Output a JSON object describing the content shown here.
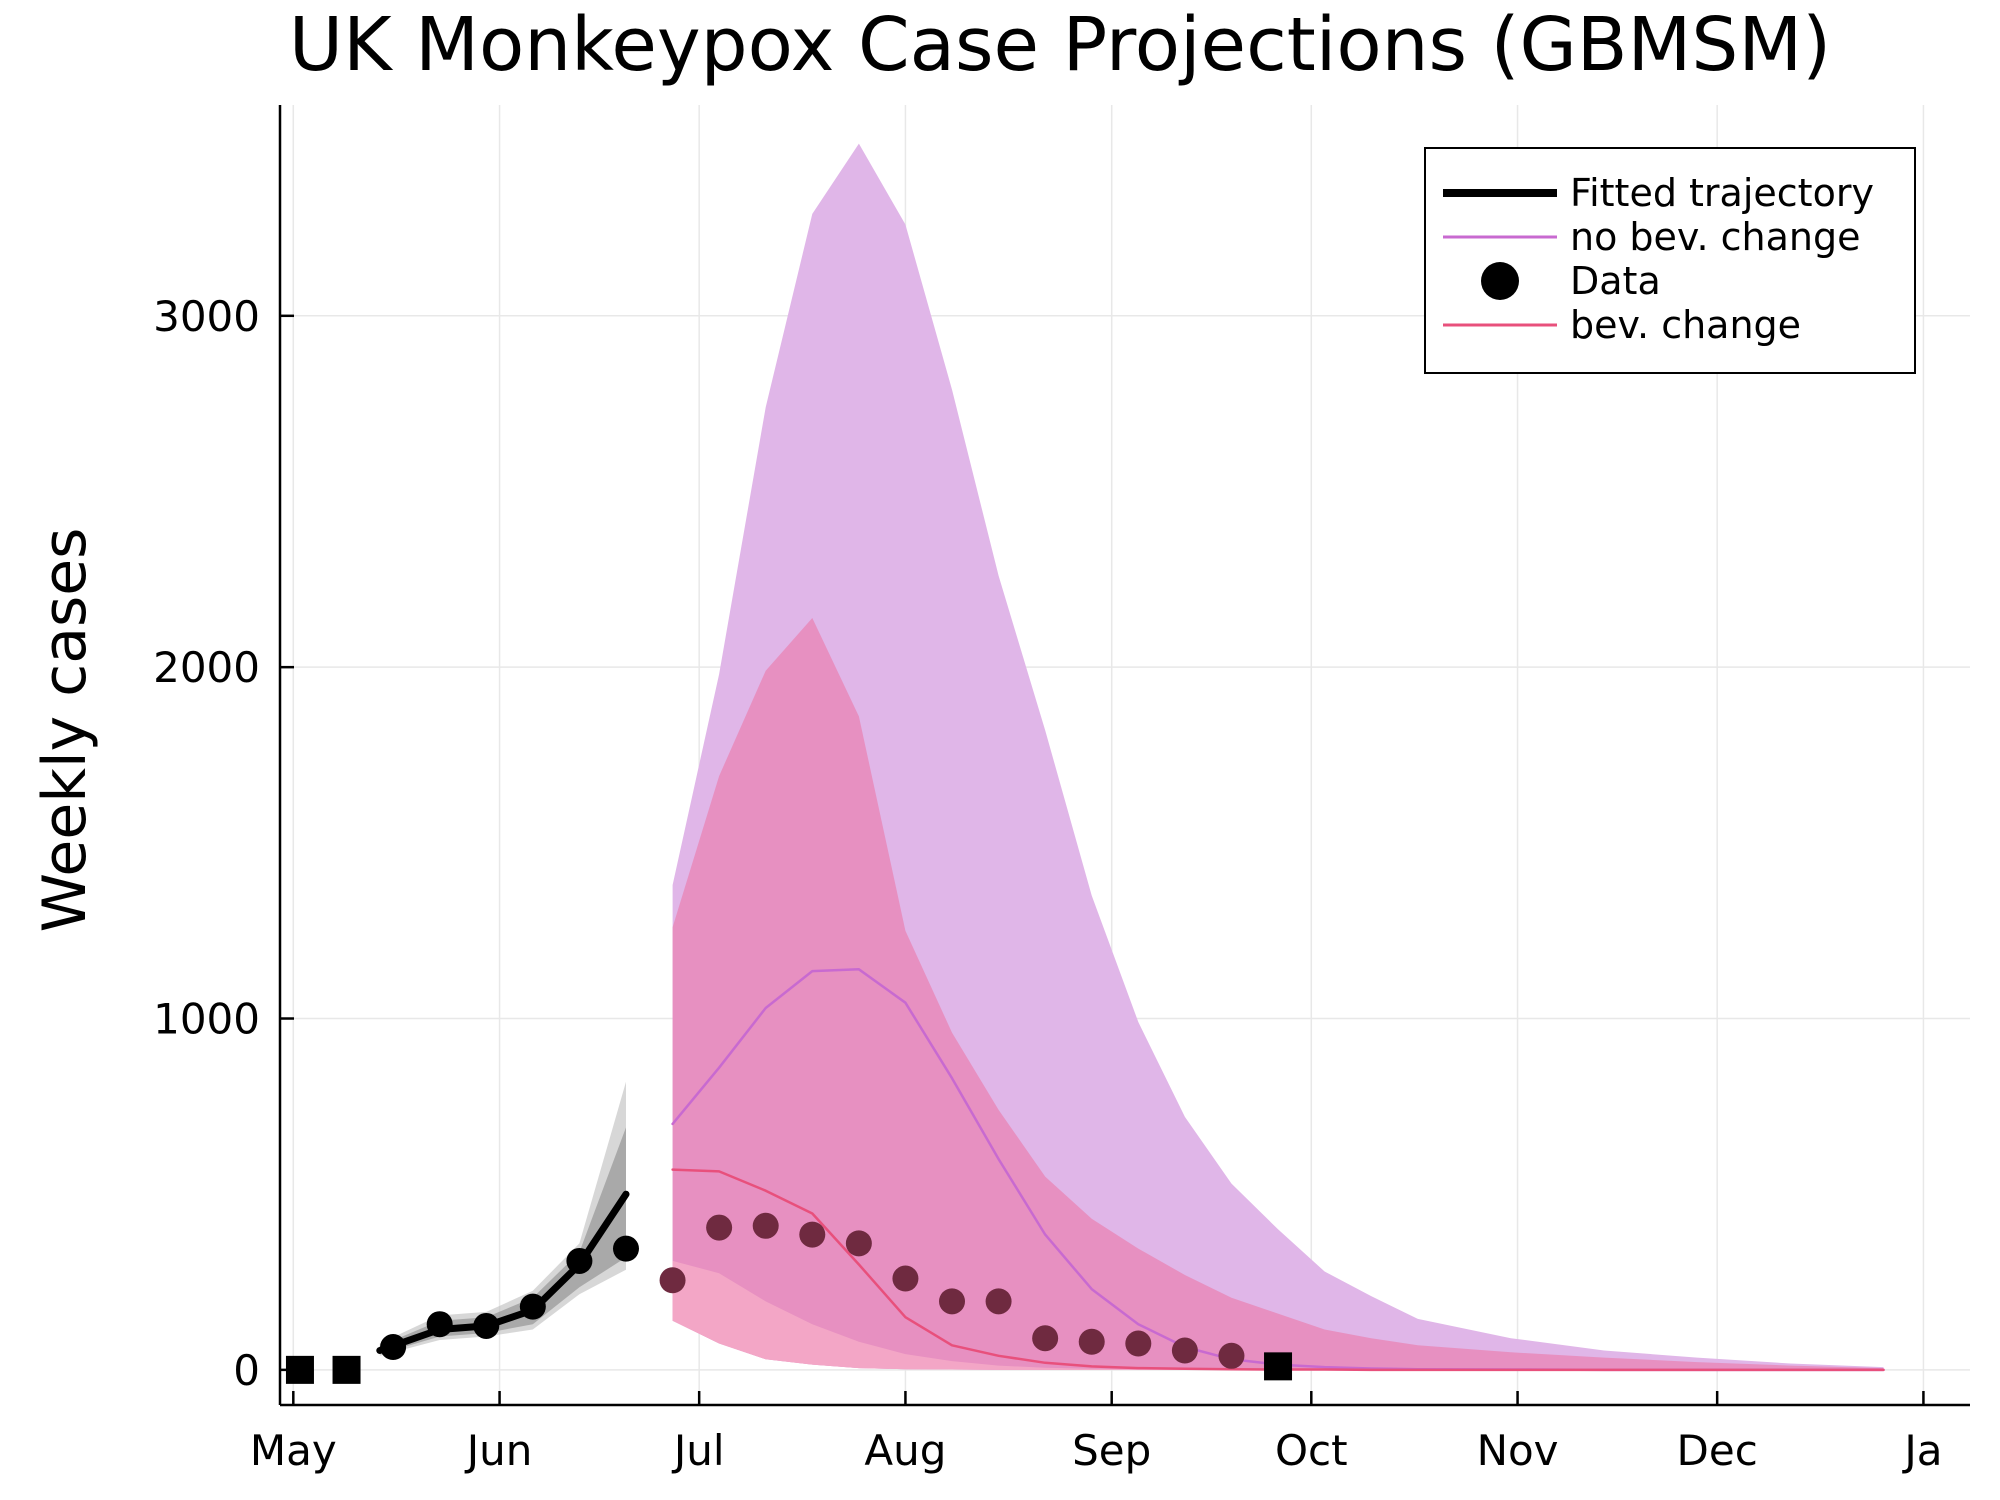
{
  "chart_data": {
    "type": "line",
    "title": "UK Monkeypox Case Projections (GBMSM)",
    "xlabel": "",
    "ylabel": "Weekly cases",
    "x_axis_unit": "date",
    "x_range": [
      "2022-04-29",
      "2023-01-08"
    ],
    "ylim": [
      -100,
      3600
    ],
    "yticks": [
      0,
      1000,
      2000,
      3000
    ],
    "yticklabels": [
      "0",
      "1000",
      "2000",
      "3000"
    ],
    "xticks": [
      {
        "label": "May",
        "date": "2022-05-01"
      },
      {
        "label": "Jun",
        "date": "2022-06-01"
      },
      {
        "label": "Jul",
        "date": "2022-07-01"
      },
      {
        "label": "Aug",
        "date": "2022-08-01"
      },
      {
        "label": "Sep",
        "date": "2022-09-01"
      },
      {
        "label": "Oct",
        "date": "2022-10-01"
      },
      {
        "label": "Nov",
        "date": "2022-11-01"
      },
      {
        "label": "Dec",
        "date": "2022-12-01"
      },
      {
        "label": "Ja",
        "date": "2023-01-01"
      }
    ],
    "grid": true,
    "legend_position": "top-right",
    "legend": [
      {
        "label": "Fitted trajectory",
        "style": "thick-line",
        "color": "#000000"
      },
      {
        "label": "no bev. change",
        "style": "line",
        "color": "#c86ad0"
      },
      {
        "label": "Data",
        "style": "marker",
        "color": "#000000"
      },
      {
        "label": "bev. change",
        "style": "line",
        "color": "#e8507c"
      }
    ],
    "colors": {
      "fitted": "#000000",
      "no_bev_change_line": "#c86ad0",
      "no_bev_change_band": "#e0b6e8",
      "bev_change_line": "#e8507c",
      "bev_change_band_outer": "#e88aba",
      "bev_change_band_inner": "#f4a8c6",
      "data_in_fit": "#000000",
      "data_after_fit": "#6f2a40",
      "grid": "#e8e8e8"
    },
    "excluded_data": [
      {
        "date": "2022-05-02",
        "value": 0
      },
      {
        "date": "2022-05-09",
        "value": 0
      },
      {
        "date": "2022-09-26",
        "value": 10
      }
    ],
    "fitted_data": [
      {
        "date": "2022-05-16",
        "value": 65
      },
      {
        "date": "2022-05-23",
        "value": 130
      },
      {
        "date": "2022-05-30",
        "value": 125
      },
      {
        "date": "2022-06-06",
        "value": 180
      },
      {
        "date": "2022-06-13",
        "value": 310
      },
      {
        "date": "2022-06-20",
        "value": 345
      }
    ],
    "post_fit_data": [
      {
        "date": "2022-06-27",
        "value": 255
      },
      {
        "date": "2022-07-04",
        "value": 405
      },
      {
        "date": "2022-07-11",
        "value": 410
      },
      {
        "date": "2022-07-18",
        "value": 385
      },
      {
        "date": "2022-07-25",
        "value": 360
      },
      {
        "date": "2022-08-01",
        "value": 260
      },
      {
        "date": "2022-08-08",
        "value": 195
      },
      {
        "date": "2022-08-15",
        "value": 195
      },
      {
        "date": "2022-08-22",
        "value": 90
      },
      {
        "date": "2022-08-29",
        "value": 80
      },
      {
        "date": "2022-09-05",
        "value": 75
      },
      {
        "date": "2022-09-12",
        "value": 55
      },
      {
        "date": "2022-09-19",
        "value": 40
      }
    ],
    "fitted_trajectory": {
      "dates": [
        "2022-05-14",
        "2022-05-23",
        "2022-05-30",
        "2022-06-06",
        "2022-06-13",
        "2022-06-20"
      ],
      "median": [
        55,
        115,
        125,
        170,
        300,
        500
      ],
      "band_outer_low": [
        40,
        85,
        95,
        115,
        215,
        285
      ],
      "band_outer_high": [
        75,
        155,
        165,
        225,
        360,
        820
      ],
      "band_inner_low": [
        45,
        95,
        105,
        130,
        235,
        320
      ],
      "band_inner_high": [
        68,
        140,
        150,
        205,
        335,
        690
      ]
    },
    "no_bev_change": {
      "dates": [
        "2022-06-27",
        "2022-07-04",
        "2022-07-11",
        "2022-07-18",
        "2022-07-25",
        "2022-08-01",
        "2022-08-08",
        "2022-08-15",
        "2022-08-22",
        "2022-08-29",
        "2022-09-05",
        "2022-09-12",
        "2022-09-19",
        "2022-09-26",
        "2022-10-03",
        "2022-10-10",
        "2022-10-17",
        "2022-10-31",
        "2022-11-14",
        "2022-11-28",
        "2022-12-12",
        "2022-12-26"
      ],
      "median": [
        700,
        860,
        1030,
        1135,
        1140,
        1045,
        830,
        600,
        385,
        230,
        130,
        65,
        30,
        15,
        8,
        4,
        2,
        1,
        0,
        0,
        0,
        0
      ],
      "upper": [
        1380,
        1980,
        2740,
        3290,
        3490,
        3260,
        2790,
        2260,
        1820,
        1350,
        990,
        720,
        530,
        400,
        280,
        210,
        145,
        90,
        55,
        35,
        18,
        8
      ],
      "lower": [
        140,
        75,
        30,
        15,
        5,
        2,
        1,
        0,
        0,
        0,
        0,
        0,
        0,
        0,
        0,
        0,
        0,
        0,
        0,
        0,
        0,
        0
      ]
    },
    "bev_change": {
      "dates": [
        "2022-06-27",
        "2022-07-04",
        "2022-07-11",
        "2022-07-18",
        "2022-07-25",
        "2022-08-01",
        "2022-08-08",
        "2022-08-15",
        "2022-08-22",
        "2022-08-29",
        "2022-09-05",
        "2022-09-12",
        "2022-09-19",
        "2022-09-26",
        "2022-10-03",
        "2022-10-10",
        "2022-10-17",
        "2022-10-31",
        "2022-11-14",
        "2022-11-28",
        "2022-12-12",
        "2022-12-26"
      ],
      "median": [
        570,
        565,
        510,
        445,
        300,
        150,
        70,
        40,
        20,
        10,
        5,
        3,
        2,
        1,
        1,
        0,
        0,
        0,
        0,
        0,
        0,
        0
      ],
      "outer_high": [
        1260,
        1690,
        1990,
        2140,
        1860,
        1250,
        960,
        740,
        550,
        430,
        345,
        270,
        205,
        160,
        115,
        90,
        70,
        50,
        35,
        22,
        12,
        5
      ],
      "outer_low": [
        140,
        75,
        30,
        15,
        5,
        2,
        1,
        0,
        0,
        0,
        0,
        0,
        0,
        0,
        0,
        0,
        0,
        0,
        0,
        0,
        0,
        0
      ],
      "inner_high": [
        310,
        275,
        195,
        130,
        80,
        45,
        25,
        12,
        6,
        3,
        2,
        1,
        0,
        0,
        0,
        0,
        0,
        0,
        0,
        0,
        0,
        0
      ],
      "inner_low": [
        140,
        75,
        30,
        15,
        5,
        2,
        1,
        0,
        0,
        0,
        0,
        0,
        0,
        0,
        0,
        0,
        0,
        0,
        0,
        0,
        0,
        0
      ]
    }
  }
}
